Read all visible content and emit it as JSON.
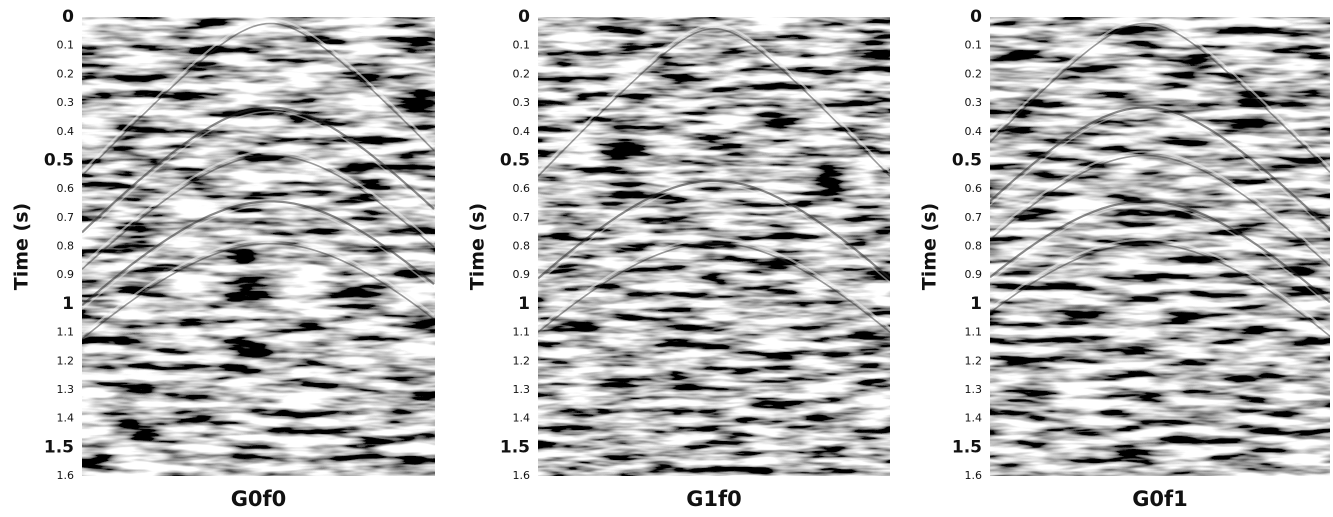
{
  "chart_data": [
    {
      "type": "image",
      "title": "G0f0",
      "y_label": "Time (s)",
      "ylim": [
        0,
        1.6
      ],
      "yticks": [
        0,
        0.1,
        0.2,
        0.3,
        0.4,
        0.5,
        0.6,
        0.7,
        0.8,
        0.9,
        1,
        1.1,
        1.2,
        1.3,
        1.4,
        1.5,
        1.6
      ]
    },
    {
      "type": "image",
      "title": "G1f0",
      "y_label": "Time (s)",
      "ylim": [
        0,
        1.6
      ],
      "yticks": [
        0,
        0.1,
        0.2,
        0.3,
        0.4,
        0.5,
        0.6,
        0.7,
        0.8,
        0.9,
        1,
        1.1,
        1.2,
        1.3,
        1.4,
        1.5,
        1.6
      ]
    },
    {
      "type": "image",
      "title": "G0f1",
      "y_label": "Time (s)",
      "ylim": [
        0,
        1.6
      ],
      "yticks": [
        0,
        0.1,
        0.2,
        0.3,
        0.4,
        0.5,
        0.6,
        0.7,
        0.8,
        0.9,
        1,
        1.1,
        1.2,
        1.3,
        1.4,
        1.5,
        1.6
      ]
    }
  ]
}
